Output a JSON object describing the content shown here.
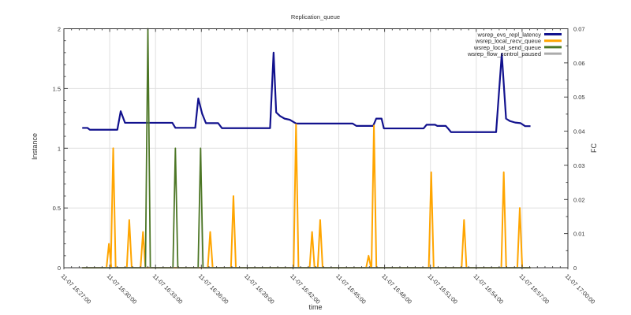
{
  "chart_data": {
    "type": "line",
    "title": "Replication_queue",
    "xlabel": "time",
    "ylabel": "Instance",
    "y2label": "FC",
    "ylim": [
      0,
      2
    ],
    "y2lim": [
      0,
      0.07
    ],
    "grid": true,
    "legend_position": "top-right-inside",
    "x_axis": {
      "start_label": "11-07 16:27:00",
      "end_label": "11-07 17:00:00",
      "tick_interval_minutes": 3,
      "minor_tick_interval_minutes": 0.5,
      "tick_labels": [
        "11-07 16:27:00",
        "11-07 16:30:00",
        "11-07 16:33:00",
        "11-07 16:36:00",
        "11-07 16:39:00",
        "11-07 16:42:00",
        "11-07 16:45:00",
        "11-07 16:48:00",
        "11-07 16:51:00",
        "11-07 16:54:00",
        "11-07 16:57:00",
        "11-07 17:00:00"
      ]
    },
    "y_axis": {
      "tick_labels": [
        "0",
        "0.5",
        "1",
        "1.5",
        "2"
      ],
      "tick_values": [
        0,
        0.5,
        1,
        1.5,
        2
      ],
      "minor_step": 0.1
    },
    "y2_axis": {
      "tick_labels": [
        "0",
        "0.01",
        "0.02",
        "0.03",
        "0.04",
        "0.05",
        "0.06",
        "0.07"
      ],
      "tick_values": [
        0,
        0.01,
        0.02,
        0.03,
        0.04,
        0.05,
        0.06,
        0.07
      ],
      "minor_step": 0.005
    },
    "colors": {
      "background": "#ffffff",
      "border": "#333333",
      "grid": "#e0e0e0",
      "text": "#333333"
    },
    "series": [
      {
        "name": "wsrep_evs_repl_latency",
        "color": "#12128e",
        "width": 2.2,
        "axis": "left",
        "kind": "steps",
        "points": [
          [
            1.2,
            1.17
          ],
          [
            1.55,
            1.17
          ],
          [
            1.7,
            1.155
          ],
          [
            3.5,
            1.155
          ],
          [
            3.72,
            1.31
          ],
          [
            4.0,
            1.213
          ],
          [
            7.1,
            1.213
          ],
          [
            7.3,
            1.171
          ],
          [
            8.6,
            1.171
          ],
          [
            8.8,
            1.417
          ],
          [
            9.05,
            1.29
          ],
          [
            9.3,
            1.21
          ],
          [
            10.1,
            1.21
          ],
          [
            10.35,
            1.168
          ],
          [
            13.5,
            1.168
          ],
          [
            13.73,
            1.8
          ],
          [
            13.9,
            1.3
          ],
          [
            14.15,
            1.27
          ],
          [
            14.45,
            1.248
          ],
          [
            14.8,
            1.238
          ],
          [
            15.2,
            1.207
          ],
          [
            18.9,
            1.207
          ],
          [
            19.15,
            1.187
          ],
          [
            20.25,
            1.187
          ],
          [
            20.45,
            1.248
          ],
          [
            20.8,
            1.248
          ],
          [
            20.95,
            1.166
          ],
          [
            23.55,
            1.166
          ],
          [
            23.75,
            1.197
          ],
          [
            24.3,
            1.197
          ],
          [
            24.45,
            1.187
          ],
          [
            25.0,
            1.187
          ],
          [
            25.15,
            1.166
          ],
          [
            25.35,
            1.135
          ],
          [
            28.3,
            1.135
          ],
          [
            28.67,
            1.79
          ],
          [
            28.95,
            1.248
          ],
          [
            29.2,
            1.228
          ],
          [
            29.55,
            1.215
          ],
          [
            29.9,
            1.21
          ],
          [
            30.2,
            1.185
          ],
          [
            30.55,
            1.185
          ]
        ]
      },
      {
        "name": "wsrep_local_recv_queue",
        "color": "#ffa500",
        "width": 2,
        "axis": "left",
        "kind": "spikes",
        "baseline": 0,
        "domain": [
          1.2,
          30.55
        ],
        "spike_halfwidth_minutes": 0.16,
        "spikes": [
          [
            2.95,
            0.2
          ],
          [
            3.23,
            1.0
          ],
          [
            4.28,
            0.4
          ],
          [
            5.18,
            0.3
          ],
          [
            9.58,
            0.3
          ],
          [
            11.1,
            0.6
          ],
          [
            15.2,
            1.2
          ],
          [
            16.25,
            0.3
          ],
          [
            16.78,
            0.4
          ],
          [
            19.95,
            0.1
          ],
          [
            20.3,
            1.19
          ],
          [
            24.05,
            0.8
          ],
          [
            26.2,
            0.4
          ],
          [
            28.8,
            0.8
          ],
          [
            29.85,
            0.5
          ]
        ]
      },
      {
        "name": "wsrep_local_send_queue",
        "color": "#4d7726",
        "width": 1.8,
        "axis": "left",
        "kind": "spikes",
        "baseline": 0,
        "domain": [
          1.2,
          30.55
        ],
        "spike_halfwidth_minutes": 0.16,
        "spikes": [
          [
            5.5,
            2.0
          ],
          [
            7.3,
            1.0
          ],
          [
            8.95,
            1.0
          ]
        ]
      },
      {
        "name": "wsrep_flow_control_paused",
        "color": "#ababab",
        "width": 1.4,
        "axis": "right",
        "kind": "flat",
        "value": 0,
        "domain": [
          1.2,
          30.55
        ]
      }
    ],
    "legend": [
      {
        "label": "wsrep_evs_repl_latency",
        "color": "#12128e"
      },
      {
        "label": "wsrep_local_recv_queue",
        "color": "#ffa500"
      },
      {
        "label": "wsrep_local_send_queue",
        "color": "#4d7726"
      },
      {
        "label": "wsrep_flow_control_paused",
        "color": "#ababab"
      }
    ]
  }
}
